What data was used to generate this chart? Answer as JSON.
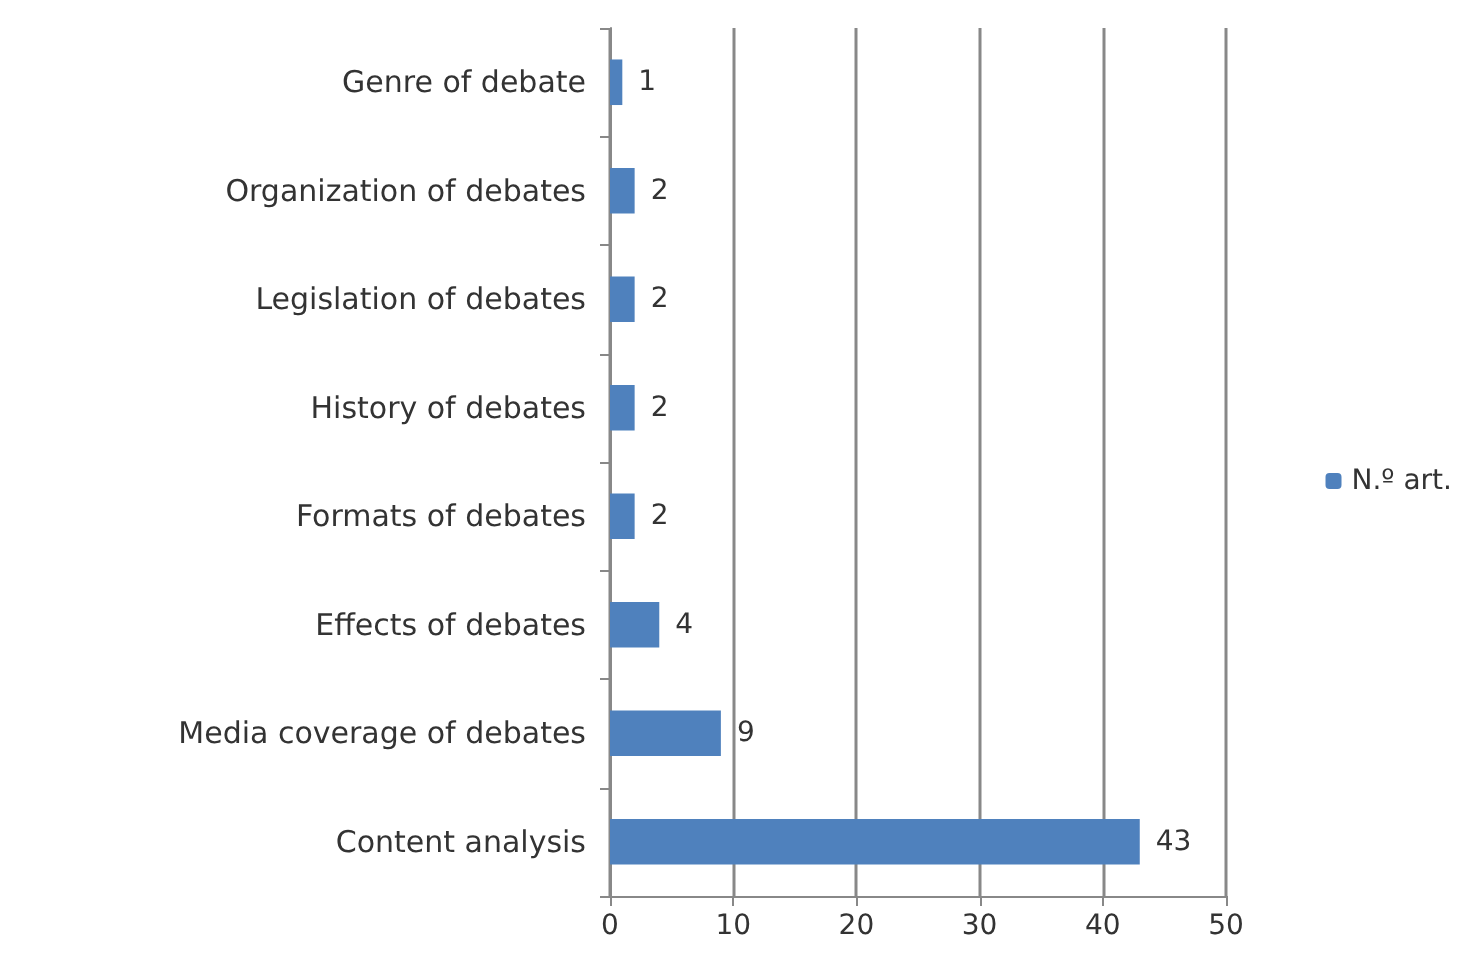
{
  "chart_data": {
    "type": "bar",
    "orientation": "horizontal",
    "categories": [
      "Genre of debate",
      "Organization of debates",
      "Legislation of debates",
      "History of debates",
      "Formats of debates",
      "Effects of debates",
      "Media coverage of debates",
      "Content analysis"
    ],
    "series": [
      {
        "name": "N.º art.",
        "color": "#4f81bd",
        "values": [
          1,
          2,
          2,
          2,
          2,
          4,
          9,
          43
        ]
      }
    ],
    "xlim": [
      0,
      50
    ],
    "xticks": [
      0,
      10,
      20,
      30,
      40,
      50
    ],
    "grid": "x",
    "legend": "right",
    "data_labels": true
  }
}
